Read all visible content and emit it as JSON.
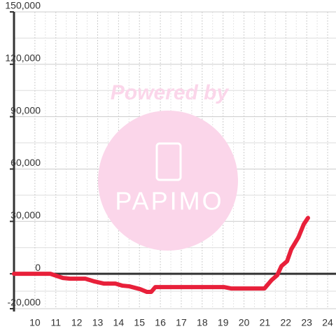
{
  "chart_data": {
    "type": "line",
    "watermark": {
      "line1": "Powered by",
      "line2": "PAPIMO"
    },
    "x": [
      9,
      10.74,
      11.34,
      11.68,
      12.41,
      12.85,
      13.29,
      13.85,
      14.19,
      14.52,
      15.03,
      15.36,
      15.56,
      15.76,
      19.04,
      19.38,
      20.98,
      21.32,
      21.59,
      21.79,
      22.06,
      22.26,
      22.6,
      22.86,
      23.06
    ],
    "series": [
      {
        "color": "#e8203a",
        "values": [
          0,
          0,
          -2400,
          -2800,
          -2800,
          -4400,
          -5600,
          -5600,
          -6800,
          -7200,
          -8800,
          -10400,
          -10400,
          -7600,
          -7600,
          -8400,
          -8400,
          -3600,
          -800,
          4400,
          7200,
          14000,
          20800,
          28400,
          32000
        ]
      }
    ],
    "xlim": [
      9,
      24.4
    ],
    "xticks": [
      10,
      11,
      12,
      13,
      14,
      15,
      16,
      17,
      18,
      19,
      20,
      21,
      22,
      23,
      24
    ],
    "ylim": [
      -20000,
      150000
    ],
    "yticks": [
      {
        "value": -20000,
        "label": "-20,000"
      },
      0,
      {
        "value": 30000,
        "label": "30,000"
      },
      {
        "value": 60000,
        "label": "60,000"
      },
      {
        "value": 90000,
        "label": "90,000"
      },
      {
        "value": 120000,
        "label": "120,000"
      },
      {
        "value": 150000,
        "label": "150,000"
      }
    ],
    "grid": true
  }
}
